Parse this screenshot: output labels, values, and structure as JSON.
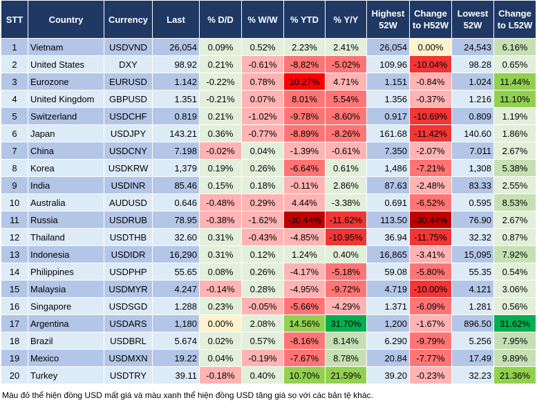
{
  "headers": [
    "STT",
    "Country",
    "Currency",
    "Last",
    "% D/D",
    "% W/W",
    "% YTD",
    "% Y/Y",
    "Highest 52W",
    "Change to H52W",
    "Lowest 52W",
    "Change to L52W"
  ],
  "colors": {
    "header": "#1F3864",
    "row_dark": "#B4C6E7",
    "row_light": "#DDEBF7",
    "light_green": "#E2EFDA",
    "light_red": "#FFB3B3",
    "red": "#FF7575",
    "strong_red": "#F23535",
    "dark_red": "#C00000",
    "bright_red": "#FF0000",
    "green_light": "#C6E0B4",
    "green": "#92D050",
    "dark_green": "#00B050",
    "neutral": "#FFF2CC"
  },
  "rows": [
    [
      "1",
      "Vietnam",
      "USDVND",
      "26,054",
      "0.09%",
      "0.52%",
      "2.23%",
      "2.41%",
      "26,054",
      "0.00%",
      "24,543",
      "6.16%"
    ],
    [
      "2",
      "United States",
      "DXY",
      "98.92",
      "0.21%",
      "-0.61%",
      "-8.82%",
      "-5.02%",
      "109.96",
      "-10.04%",
      "98.28",
      "0.65%"
    ],
    [
      "3",
      "Eurozone",
      "EURUSD",
      "1.142",
      "-0.22%",
      "0.78%",
      "10.27%",
      "4.71%",
      "1.151",
      "-0.84%",
      "1.024",
      "11.44%"
    ],
    [
      "4",
      "United Kingdom",
      "GBPUSD",
      "1.351",
      "-0.21%",
      "0.07%",
      "8.01%",
      "5.54%",
      "1.356",
      "-0.37%",
      "1.216",
      "11.10%"
    ],
    [
      "5",
      "Switzerland",
      "USDCHF",
      "0.819",
      "0.21%",
      "-1.02%",
      "-9.78%",
      "-8.60%",
      "0.917",
      "-10.69%",
      "0.809",
      "1.19%"
    ],
    [
      "6",
      "Japan",
      "USDJPY",
      "143.21",
      "0.36%",
      "-0.77%",
      "-8.89%",
      "-8.26%",
      "161.68",
      "-11.42%",
      "140.60",
      "1.86%"
    ],
    [
      "7",
      "China",
      "USDCNY",
      "7.198",
      "-0.02%",
      "0.04%",
      "-1.39%",
      "-0.61%",
      "7.350",
      "-2.07%",
      "7.011",
      "2.67%"
    ],
    [
      "8",
      "Korea",
      "USDKRW",
      "1,379",
      "0.19%",
      "0.26%",
      "-6.64%",
      "0.61%",
      "1,486",
      "-7.21%",
      "1,308",
      "5.38%"
    ],
    [
      "9",
      "India",
      "USDINR",
      "85.46",
      "0.15%",
      "0.18%",
      "-0.11%",
      "2.86%",
      "87.63",
      "-2.48%",
      "83.33",
      "2.55%"
    ],
    [
      "10",
      "Australia",
      "AUDUSD",
      "0.646",
      "-0.48%",
      "0.29%",
      "4.44%",
      "-3.38%",
      "0.691",
      "-6.52%",
      "0.595",
      "8.53%"
    ],
    [
      "11",
      "Russia",
      "USDRUB",
      "78.95",
      "-0.38%",
      "-1.62%",
      "-30.44%",
      "-11.62%",
      "113.50",
      "-30.44%",
      "76.90",
      "2.67%"
    ],
    [
      "12",
      "Thailand",
      "USDTHB",
      "32.60",
      "0.31%",
      "-0.43%",
      "-4.85%",
      "-10.95%",
      "36.94",
      "-11.75%",
      "32.32",
      "0.87%"
    ],
    [
      "13",
      "Indonesia",
      "USDIDR",
      "16,290",
      "0.31%",
      "0.12%",
      "1.24%",
      "0.40%",
      "16,865",
      "-3.41%",
      "15,095",
      "7.92%"
    ],
    [
      "14",
      "Philippines",
      "USDPHP",
      "55.65",
      "0.08%",
      "0.26%",
      "-4.17%",
      "-5.18%",
      "59.08",
      "-5.80%",
      "55.35",
      "0.54%"
    ],
    [
      "15",
      "Malaysia",
      "USDMYR",
      "4.247",
      "-0.14%",
      "0.28%",
      "-4.95%",
      "-9.72%",
      "4.719",
      "-10.00%",
      "4.121",
      "3.06%"
    ],
    [
      "16",
      "Singapore",
      "USDSGD",
      "1.288",
      "0.23%",
      "-0.05%",
      "-5.66%",
      "-4.29%",
      "1.371",
      "-6.09%",
      "1.281",
      "0.56%"
    ],
    [
      "17",
      "Argentina",
      "USDARS",
      "1,180",
      "0.00%",
      "2.08%",
      "14.56%",
      "31.70%",
      "1,200",
      "-1.67%",
      "896.50",
      "31.62%"
    ],
    [
      "18",
      "Brazil",
      "USDBRL",
      "5.674",
      "0.02%",
      "0.57%",
      "-8.16%",
      "8.14%",
      "6.290",
      "-9.79%",
      "5.256",
      "7.95%"
    ],
    [
      "19",
      "Mexico",
      "USDMXN",
      "19.22",
      "0.04%",
      "-0.19%",
      "-7.67%",
      "8.78%",
      "20.84",
      "-7.77%",
      "17.49",
      "9.89%"
    ],
    [
      "20",
      "Turkey",
      "USDTRY",
      "39.11",
      "-0.18%",
      "0.40%",
      "10.70%",
      "21.59%",
      "39.20",
      "-0.23%",
      "32.23",
      "21.36%"
    ]
  ],
  "cell_colors": [
    [
      "lg",
      "lg",
      "lg",
      "lg",
      "y",
      "g1"
    ],
    [
      "lg",
      "lp",
      "r1",
      "r1",
      "r2",
      "lg"
    ],
    [
      "lg",
      "lp",
      "r4",
      "lp",
      "lp",
      "g2"
    ],
    [
      "lg",
      "lp",
      "r1",
      "r1",
      "lp",
      "g2"
    ],
    [
      "lg",
      "lp",
      "r1",
      "r1",
      "r2",
      "lg"
    ],
    [
      "lg",
      "lp",
      "r1",
      "r1",
      "r2",
      "lg"
    ],
    [
      "lp",
      "lg",
      "lp",
      "lp",
      "lp",
      "lg"
    ],
    [
      "lg",
      "lg",
      "r1",
      "lg",
      "r1",
      "g1"
    ],
    [
      "lg",
      "lg",
      "lp",
      "lg",
      "lp",
      "lg"
    ],
    [
      "lp",
      "lp",
      "lp",
      "lg",
      "r1",
      "g1"
    ],
    [
      "lp",
      "lp",
      "r3",
      "r2",
      "r3",
      "lg"
    ],
    [
      "lg",
      "lp",
      "lp",
      "r2",
      "r2",
      "lg"
    ],
    [
      "lg",
      "lg",
      "lg",
      "lg",
      "lp",
      "g1"
    ],
    [
      "lg",
      "lg",
      "lp",
      "r1",
      "r1",
      "lg"
    ],
    [
      "lp",
      "lg",
      "lp",
      "r1",
      "r2",
      "lg"
    ],
    [
      "lg",
      "lp",
      "r1",
      "lp",
      "r1",
      "lg"
    ],
    [
      "y",
      "lg",
      "g2",
      "g3",
      "lp",
      "g3"
    ],
    [
      "lg",
      "lg",
      "r1",
      "g1",
      "r1",
      "g1"
    ],
    [
      "lg",
      "lp",
      "r1",
      "g1",
      "r1",
      "g1"
    ],
    [
      "lp",
      "lg",
      "g2",
      "g2",
      "lp",
      "g2"
    ]
  ],
  "footnote": "Màu đỏ thể hiện đồng USD mất giá và màu xanh thể hiện đồng USD tăng giá so với các bản tệ khác."
}
